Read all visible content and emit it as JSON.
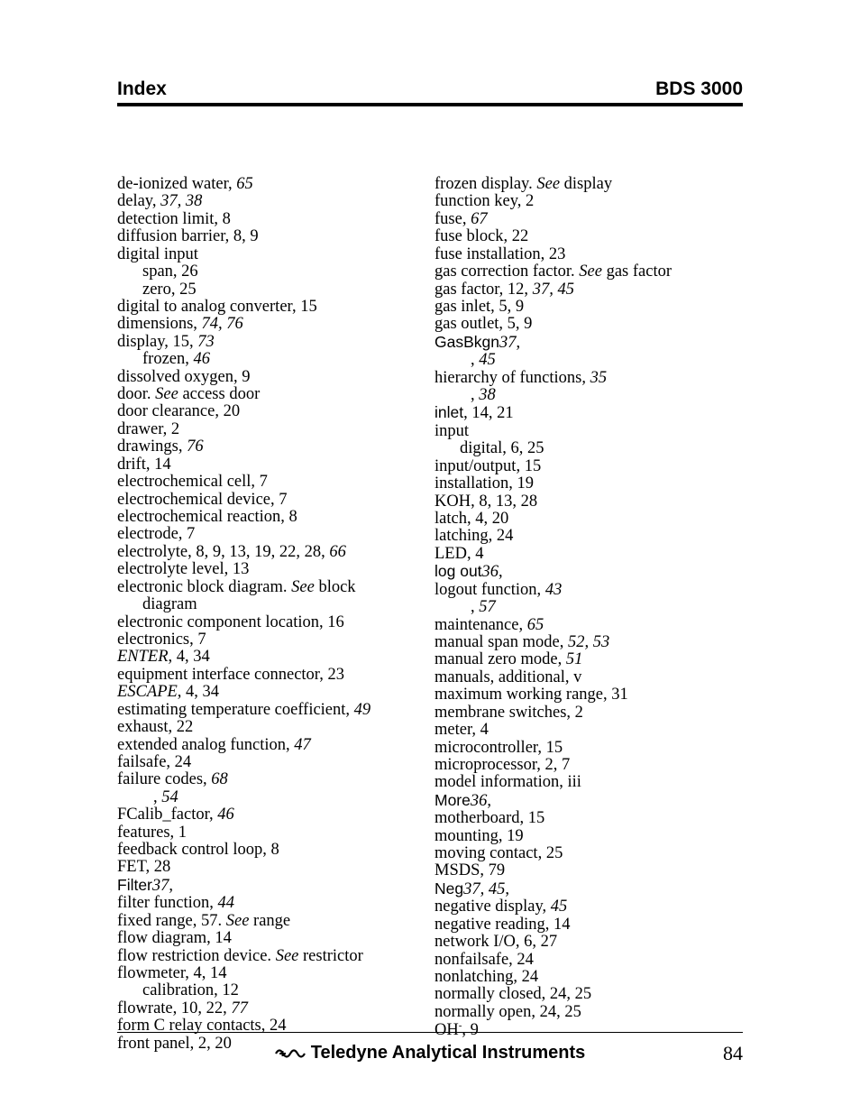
{
  "header": {
    "left": "Index",
    "right": "BDS 3000"
  },
  "footer": {
    "center": "Teledyne Analytical Instruments",
    "page": "84"
  },
  "colors": {
    "text": "#000000",
    "bg": "#ffffff"
  },
  "left_col": [
    {
      "t": "de-ionized water, ",
      "it": "65"
    },
    {
      "t": "delay, ",
      "it": "37, 38"
    },
    {
      "t": "detection limit, 8"
    },
    {
      "t": "diffusion barrier, 8, 9"
    },
    {
      "t": "digital input"
    },
    {
      "sub": true,
      "t": "span, 26"
    },
    {
      "sub": true,
      "t": "zero, 25"
    },
    {
      "t": "digital to analog converter, 15"
    },
    {
      "t": "dimensions, ",
      "it": "74, 76"
    },
    {
      "t": "display, 15, ",
      "it": "73"
    },
    {
      "sub": true,
      "t": "frozen, ",
      "it": "46"
    },
    {
      "t": "dissolved oxygen, 9"
    },
    {
      "t": "door. ",
      "it": "See",
      "tail": " access door"
    },
    {
      "t": "door clearance, 20"
    },
    {
      "t": "drawer, 2"
    },
    {
      "t": "drawings, ",
      "it": "76"
    },
    {
      "t": "drift, 14"
    },
    {
      "t": "electrochemical cell, 7"
    },
    {
      "t": "electrochemical device, 7"
    },
    {
      "t": "electrochemical reaction, 8"
    },
    {
      "t": "electrode, 7"
    },
    {
      "t": "electrolyte, 8, 9, 13, 19, 22, 28, ",
      "it": "66"
    },
    {
      "t": "electrolyte level, 13"
    },
    {
      "t": "electronic block diagram. ",
      "it": "See",
      "tail": " block"
    },
    {
      "sub": true,
      "t": "diagram"
    },
    {
      "t": "electronic component location, 16"
    },
    {
      "t": "electronics, 7"
    },
    {
      "it_lead": "ENTER",
      "tail": ", 4, 34"
    },
    {
      "t": "equipment interface connector, 23"
    },
    {
      "it_lead": "ESCAPE",
      "tail": ", 4, 34"
    },
    {
      "t": "estimating temperature coefficient, ",
      "it": "49"
    },
    {
      "t": "exhaust, 22"
    },
    {
      "t": "extended analog function, ",
      "it": "47"
    },
    {
      "t": "failsafe, 24"
    },
    {
      "t": "failure codes, ",
      "it": "68"
    },
    {
      "subspace": true,
      "t": ", ",
      "it": "54"
    },
    {
      "t": "FCalib_factor, ",
      "it": "46"
    },
    {
      "t": "features, 1"
    },
    {
      "t": "feedback control loop, 8"
    },
    {
      "t": "FET, 28"
    },
    {
      "sans": "Filter",
      "tail": ", ",
      "it": "37"
    },
    {
      "t": "filter function, ",
      "it": "44"
    },
    {
      "t": "fixed range, 57. ",
      "it": "See",
      "tail": " range"
    },
    {
      "t": "flow diagram, 14"
    },
    {
      "t": "flow restriction device. ",
      "it": "See",
      "tail": " restrictor"
    },
    {
      "t": "flowmeter, 4, 14"
    },
    {
      "sub": true,
      "t": "calibration, 12"
    },
    {
      "t": "flowrate, 10, 22, ",
      "it": "77"
    },
    {
      "t": "form C relay contacts, 24"
    },
    {
      "t": "front panel, 2, 20"
    }
  ],
  "right_col": [
    {
      "t": "frozen display. ",
      "it": "See",
      "tail": " display"
    },
    {
      "t": "function key, 2"
    },
    {
      "t": "fuse, ",
      "it": "67"
    },
    {
      "t": "fuse block, 22"
    },
    {
      "t": "fuse installation, 23"
    },
    {
      "t": "gas correction factor. ",
      "it": "See",
      "tail": " gas factor"
    },
    {
      "t": "gas factor, 12, ",
      "it": "37, 45"
    },
    {
      "t": "gas inlet, 5, 9"
    },
    {
      "t": "gas outlet, 5, 9"
    },
    {
      "sans": "GasBkgn",
      "tail": ", ",
      "it": "37"
    },
    {
      "subspace": true,
      "t": ", ",
      "it": "45"
    },
    {
      "t": "hierarchy of functions, ",
      "it": "35"
    },
    {
      "subspace": true,
      "t": ", ",
      "it": "38"
    },
    {
      "sans": "inlet",
      "tail": ", 14, 21"
    },
    {
      "t": "input"
    },
    {
      "sub": true,
      "t": "digital, 6, 25"
    },
    {
      "t": "input/output, 15"
    },
    {
      "t": "installation, 19"
    },
    {
      "t": "KOH, 8, 13, 28"
    },
    {
      "t": "latch, 4, 20"
    },
    {
      "t": "latching, 24"
    },
    {
      "t": "LED, 4"
    },
    {
      "sans": "log out",
      "tail": ", ",
      "it": "36"
    },
    {
      "t": "logout function, ",
      "it": "43"
    },
    {
      "subspace": true,
      "t": ", ",
      "it": "57"
    },
    {
      "t": "maintenance, ",
      "it": "65"
    },
    {
      "t": "manual span mode, ",
      "it": "52, 53"
    },
    {
      "t": "manual zero mode, ",
      "it": "51"
    },
    {
      "t": "manuals, additional, v"
    },
    {
      "t": "maximum working range, 31"
    },
    {
      "t": "membrane switches, 2"
    },
    {
      "t": "meter, 4"
    },
    {
      "t": "microcontroller, 15"
    },
    {
      "t": "microprocessor, 2, 7"
    },
    {
      "t": "model information, iii"
    },
    {
      "sans": "More",
      "tail": ", ",
      "it": "36"
    },
    {
      "t": "motherboard, 15"
    },
    {
      "t": "mounting, 19"
    },
    {
      "t": "moving contact, 25"
    },
    {
      "t": "MSDS, 79"
    },
    {
      "sans": "Neg",
      "tail": ", ",
      "it": "37, 45"
    },
    {
      "t": "negative display, ",
      "it": "45"
    },
    {
      "t": "negative reading, 14"
    },
    {
      "t": "network I/O, 6, 27"
    },
    {
      "t": "nonfailsafe, 24"
    },
    {
      "t": "nonlatching, 24"
    },
    {
      "t": "normally closed, 24, 25"
    },
    {
      "t": "normally open, 24, 25"
    },
    {
      "oh": true
    }
  ]
}
